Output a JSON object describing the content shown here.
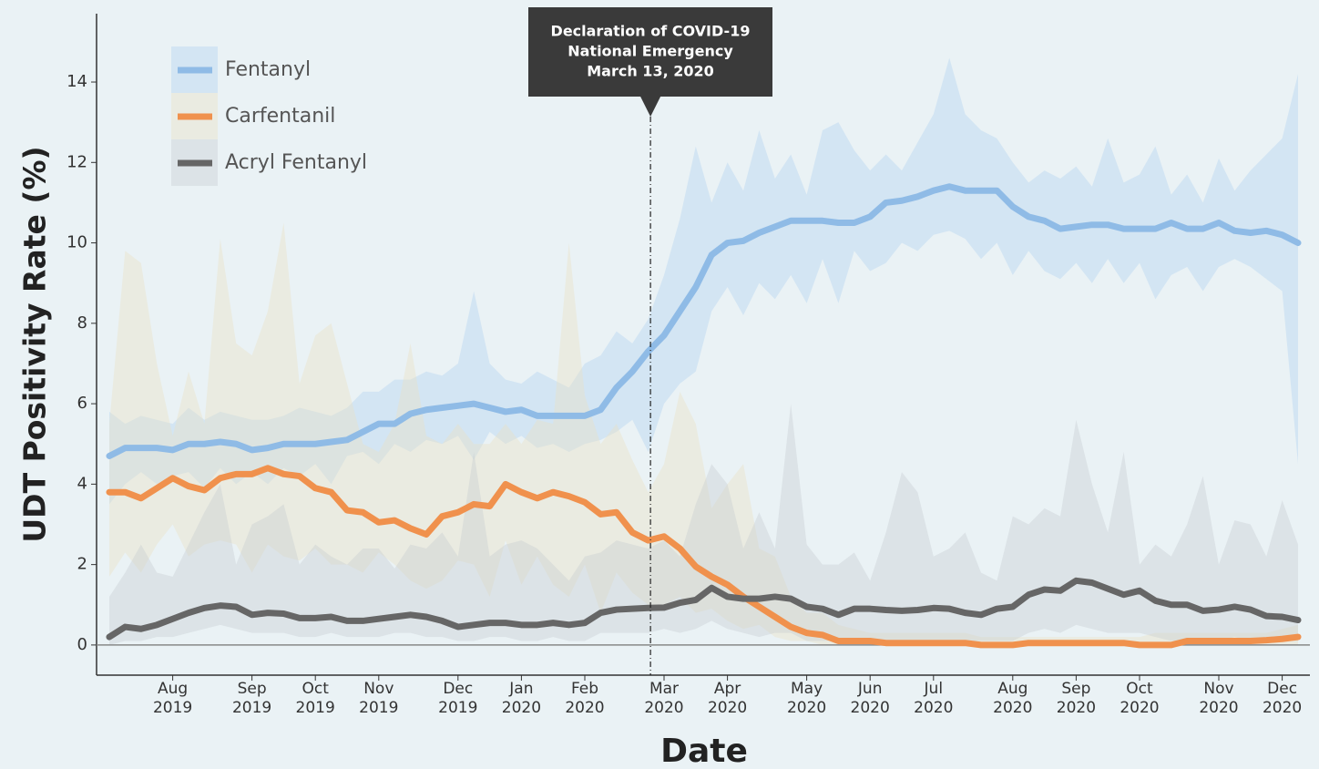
{
  "chart_data": {
    "type": "line",
    "y_label": "UDT Positivity Rate (%)",
    "x_label": "Date",
    "annotation": [
      "Declaration of COVID-19",
      "National Emergency",
      "March 13, 2020"
    ],
    "legend": "upper left",
    "ylim": [
      -0.75,
      15.7
    ],
    "yticks": [
      0,
      2,
      4,
      6,
      8,
      10,
      12,
      14
    ],
    "categories": [
      null,
      null,
      null,
      null,
      "Aug 2019",
      null,
      null,
      null,
      null,
      "Sep 2019",
      null,
      null,
      null,
      "Oct 2019",
      null,
      null,
      null,
      "Nov 2019",
      null,
      null,
      null,
      null,
      "Dec 2019",
      null,
      null,
      null,
      "Jan 2020",
      null,
      null,
      null,
      "Feb 2020",
      null,
      null,
      null,
      null,
      "Mar 2020",
      null,
      null,
      null,
      "Apr 2020",
      null,
      null,
      null,
      null,
      "May 2020",
      null,
      null,
      null,
      "Jun 2020",
      null,
      null,
      null,
      "Jul 2020",
      null,
      null,
      null,
      null,
      "Aug 2020",
      null,
      null,
      null,
      "Sep 2020",
      null,
      null,
      null,
      "Oct 2020",
      null,
      null,
      null,
      null,
      "Nov 2020",
      null,
      null,
      null,
      "Dec 2020",
      null
    ],
    "series": [
      {
        "name": "Fentanyl",
        "color": "#8fbbe6",
        "band_color": "rgba(170,205,240,0.35)",
        "values": [
          4.7,
          4.9,
          4.9,
          4.9,
          4.85,
          5.0,
          5.0,
          5.05,
          5.0,
          4.85,
          4.9,
          5.0,
          5.0,
          5.0,
          5.05,
          5.1,
          5.3,
          5.5,
          5.5,
          5.75,
          5.85,
          5.9,
          5.95,
          6.0,
          5.9,
          5.8,
          5.85,
          5.7,
          5.7,
          5.7,
          5.7,
          5.85,
          6.4,
          6.8,
          7.3,
          7.7,
          8.3,
          8.9,
          9.7,
          10.0,
          10.05,
          10.25,
          10.4,
          10.55,
          10.55,
          10.55,
          10.5,
          10.5,
          10.65,
          11.0,
          11.05,
          11.15,
          11.3,
          11.4,
          11.3,
          11.3,
          11.3,
          10.9,
          10.65,
          10.55,
          10.35,
          10.4,
          10.45,
          10.45,
          10.35,
          10.35,
          10.35,
          10.5,
          10.35,
          10.35,
          10.5,
          10.3,
          10.25,
          10.3,
          10.2,
          10.0
        ],
        "lower": [
          3.5,
          4.0,
          4.3,
          4.0,
          4.2,
          4.3,
          3.9,
          4.4,
          4.0,
          4.3,
          4.0,
          4.4,
          4.2,
          4.5,
          4.0,
          4.7,
          4.8,
          4.5,
          5.0,
          4.8,
          5.1,
          5.0,
          5.2,
          4.6,
          5.3,
          5.0,
          5.2,
          4.9,
          5.0,
          4.8,
          5.0,
          5.1,
          5.3,
          5.6,
          4.8,
          6.0,
          6.5,
          6.8,
          8.3,
          8.9,
          8.2,
          9.0,
          8.6,
          9.2,
          8.5,
          9.6,
          8.5,
          9.8,
          9.3,
          9.5,
          10.0,
          9.8,
          10.2,
          10.3,
          10.1,
          9.6,
          10.0,
          9.2,
          9.8,
          9.3,
          9.1,
          9.5,
          9.0,
          9.6,
          9.0,
          9.5,
          8.6,
          9.2,
          9.4,
          8.8,
          9.4,
          9.6,
          9.4,
          9.1,
          8.8,
          4.5
        ],
        "upper": [
          5.8,
          5.5,
          5.7,
          5.6,
          5.5,
          5.9,
          5.6,
          5.8,
          5.7,
          5.6,
          5.6,
          5.7,
          5.9,
          5.8,
          5.7,
          5.9,
          6.3,
          6.3,
          6.6,
          6.6,
          6.8,
          6.7,
          7.0,
          8.8,
          7.0,
          6.6,
          6.5,
          6.8,
          6.6,
          6.4,
          7.0,
          7.2,
          7.8,
          7.5,
          8.1,
          9.2,
          10.6,
          12.4,
          11.0,
          12.0,
          11.3,
          12.8,
          11.6,
          12.2,
          11.2,
          12.8,
          13.0,
          12.3,
          11.8,
          12.2,
          11.8,
          12.5,
          13.2,
          14.6,
          13.2,
          12.8,
          12.6,
          12.0,
          11.5,
          11.8,
          11.6,
          11.9,
          11.4,
          12.6,
          11.5,
          11.7,
          12.4,
          11.2,
          11.7,
          11.0,
          12.1,
          11.3,
          11.8,
          12.2,
          12.6,
          14.2
        ]
      },
      {
        "name": "Carfentanil",
        "color": "#f0914d",
        "band_color": "rgba(235,225,195,0.4)",
        "values": [
          3.8,
          3.8,
          3.65,
          3.9,
          4.15,
          3.95,
          3.85,
          4.15,
          4.25,
          4.25,
          4.4,
          4.25,
          4.2,
          3.9,
          3.8,
          3.35,
          3.3,
          3.05,
          3.1,
          2.9,
          2.75,
          3.2,
          3.3,
          3.5,
          3.45,
          4.0,
          3.8,
          3.65,
          3.8,
          3.7,
          3.55,
          3.25,
          3.3,
          2.8,
          2.6,
          2.7,
          2.4,
          1.95,
          1.7,
          1.5,
          1.2,
          0.95,
          0.7,
          0.45,
          0.3,
          0.25,
          0.1,
          0.1,
          0.1,
          0.05,
          0.05,
          0.05,
          0.05,
          0.05,
          0.05,
          0.0,
          0.0,
          0.0,
          0.05,
          0.05,
          0.05,
          0.05,
          0.05,
          0.05,
          0.05,
          0.0,
          0.0,
          0.0,
          0.1,
          0.1,
          0.1,
          0.1,
          0.1,
          0.12,
          0.15,
          0.2
        ],
        "lower": [
          1.7,
          2.3,
          1.8,
          2.5,
          3.0,
          2.2,
          2.5,
          2.6,
          2.5,
          1.8,
          2.5,
          2.2,
          2.1,
          2.4,
          2.0,
          2.0,
          1.8,
          2.3,
          2.0,
          1.6,
          1.4,
          1.6,
          2.1,
          2.0,
          1.2,
          2.6,
          1.5,
          2.2,
          1.5,
          1.2,
          2.0,
          0.8,
          1.8,
          1.3,
          1.0,
          1.0,
          1.2,
          0.8,
          0.9,
          0.6,
          0.4,
          0.5,
          0.2,
          0.1,
          0.1,
          0,
          0,
          0,
          0,
          0,
          0,
          0,
          0,
          0,
          0,
          0,
          0,
          0,
          0,
          0,
          0,
          0,
          0,
          0,
          0,
          0,
          0,
          0,
          0,
          0,
          0,
          0,
          0,
          0,
          0,
          0
        ],
        "upper": [
          5.5,
          9.8,
          9.5,
          7.0,
          5.2,
          6.8,
          5.5,
          10.1,
          7.5,
          7.2,
          8.3,
          10.5,
          6.5,
          7.7,
          8.0,
          6.5,
          5.0,
          4.8,
          5.5,
          7.5,
          5.2,
          5.0,
          5.5,
          5.0,
          5.0,
          5.5,
          5.0,
          5.6,
          5.5,
          10.0,
          6.2,
          5.0,
          5.5,
          4.6,
          3.8,
          4.5,
          6.3,
          5.5,
          3.4,
          4.0,
          4.5,
          2.4,
          2.2,
          1.2,
          0.8,
          0.8,
          0.5,
          0.4,
          0.3,
          0.3,
          0.3,
          0.3,
          0.3,
          0.3,
          0.3,
          0.2,
          0.2,
          0.2,
          0.2,
          0.2,
          0.2,
          0.2,
          0.2,
          0.2,
          0.2,
          0.2,
          0.3,
          0.3,
          0.3,
          0.3,
          0.3,
          0.3,
          0.3,
          0.3,
          0.4,
          0.5
        ]
      },
      {
        "name": "Acryl Fentanyl",
        "color": "#666666",
        "band_color": "rgba(195,200,205,0.35)",
        "values": [
          0.2,
          0.45,
          0.4,
          0.5,
          0.65,
          0.8,
          0.92,
          0.98,
          0.95,
          0.75,
          0.8,
          0.78,
          0.67,
          0.67,
          0.7,
          0.6,
          0.6,
          0.65,
          0.7,
          0.75,
          0.7,
          0.6,
          0.45,
          0.5,
          0.55,
          0.55,
          0.5,
          0.5,
          0.55,
          0.5,
          0.55,
          0.8,
          0.88,
          0.9,
          0.92,
          0.93,
          1.05,
          1.12,
          1.42,
          1.2,
          1.15,
          1.15,
          1.2,
          1.15,
          0.95,
          0.9,
          0.75,
          0.9,
          0.9,
          0.87,
          0.85,
          0.87,
          0.92,
          0.9,
          0.8,
          0.75,
          0.9,
          0.95,
          1.25,
          1.38,
          1.35,
          1.6,
          1.55,
          1.4,
          1.25,
          1.35,
          1.1,
          1.0,
          1.0,
          0.85,
          0.88,
          0.95,
          0.88,
          0.72,
          0.7,
          0.62
        ],
        "lower": [
          0,
          0.1,
          0.1,
          0.2,
          0.2,
          0.3,
          0.4,
          0.5,
          0.4,
          0.3,
          0.3,
          0.3,
          0.2,
          0.2,
          0.3,
          0.2,
          0.2,
          0.2,
          0.3,
          0.3,
          0.2,
          0.2,
          0.1,
          0.1,
          0.2,
          0.2,
          0.1,
          0.1,
          0.2,
          0.1,
          0.1,
          0.3,
          0.3,
          0.3,
          0.3,
          0.4,
          0.3,
          0.4,
          0.6,
          0.4,
          0.3,
          0.2,
          0.3,
          0.3,
          0.1,
          0.1,
          0.1,
          0.1,
          0.1,
          0.1,
          0.1,
          0.1,
          0.1,
          0.1,
          0.1,
          0.1,
          0.1,
          0.1,
          0.3,
          0.4,
          0.3,
          0.5,
          0.4,
          0.3,
          0.3,
          0.3,
          0.2,
          0.1,
          0.1,
          0.1,
          0.1,
          0.2,
          0.1,
          0.1,
          0.1,
          0.1
        ],
        "upper": [
          1.2,
          1.8,
          2.5,
          1.8,
          1.7,
          2.5,
          3.3,
          4.0,
          2.0,
          3.0,
          3.2,
          3.5,
          2.0,
          2.5,
          2.2,
          2.0,
          2.4,
          2.4,
          1.9,
          2.5,
          2.4,
          2.8,
          2.2,
          4.8,
          2.2,
          2.5,
          2.6,
          2.4,
          2.0,
          1.6,
          2.2,
          2.3,
          2.6,
          2.5,
          2.4,
          2.6,
          2.2,
          3.5,
          4.5,
          4.0,
          2.4,
          3.3,
          2.4,
          6.0,
          2.5,
          2.0,
          2.0,
          2.3,
          1.6,
          2.8,
          4.3,
          3.8,
          2.2,
          2.4,
          2.8,
          1.8,
          1.6,
          3.2,
          3.0,
          3.4,
          3.2,
          5.6,
          4.0,
          2.8,
          4.8,
          2.0,
          2.5,
          2.2,
          3.0,
          4.2,
          2.0,
          3.1,
          3.0,
          2.2,
          3.6,
          2.5
        ]
      }
    ]
  }
}
